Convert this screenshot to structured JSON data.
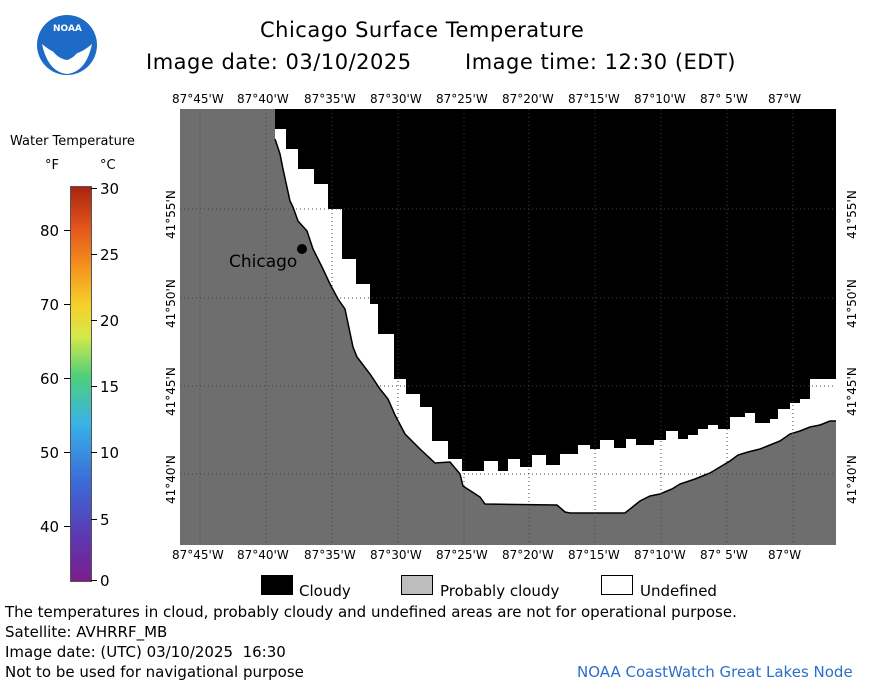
{
  "header": {
    "title": "Chicago Surface Temperature",
    "image_date": "Image date: 03/10/2025",
    "image_time": "Image time: 12:30 (EDT)"
  },
  "logo": {
    "text": "NOAA"
  },
  "colorbar": {
    "title": "Water Temperature",
    "unit_f": "°F",
    "unit_c": "°C",
    "f_ticks": [
      "80",
      "70",
      "60",
      "50",
      "40"
    ],
    "c_ticks": [
      "30",
      "25",
      "20",
      "15",
      "10",
      "5",
      "0"
    ]
  },
  "map": {
    "lon_ticks": [
      "87°45'W",
      "87°40'W",
      "87°35'W",
      "87°30'W",
      "87°25'W",
      "87°20'W",
      "87°15'W",
      "87°10'W",
      "87° 5'W",
      "87°W"
    ],
    "lat_ticks": [
      "41°55'N",
      "41°50'N",
      "41°45'N",
      "41°40'N"
    ],
    "city_label": "Chicago",
    "colors": {
      "land": "#6e6e6e",
      "cloudy": "#000000",
      "undefined": "#ffffff",
      "probably_cloudy": "#bdbdbd"
    }
  },
  "legend": {
    "cloudy": "Cloudy",
    "probably_cloudy": "Probably cloudy",
    "undefined": "Undefined"
  },
  "footer": {
    "disclaimer": "The temperatures in cloud, probably cloudy and undefined areas are not for operational purpose.",
    "satellite": "Satellite: AVHRRF_MB",
    "utc_date": "Image date: (UTC) 03/10/2025  16:30",
    "nav_warning": "Not to be used for navigational purpose",
    "credit": "NOAA CoastWatch Great Lakes Node"
  }
}
